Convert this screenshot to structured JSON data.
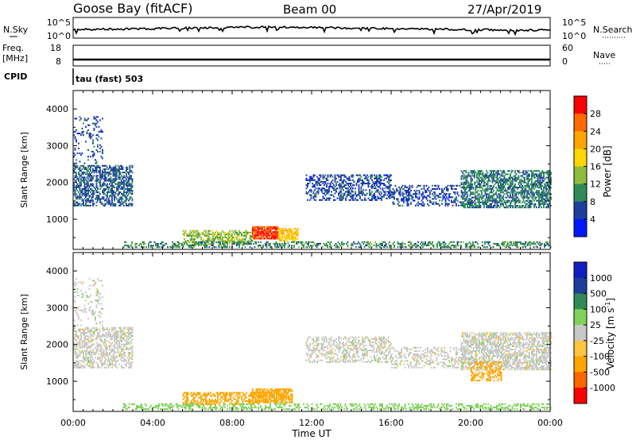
{
  "header": {
    "station": "Goose Bay (fitACF)",
    "beam": "Beam 00",
    "date": "27/Apr/2019"
  },
  "params": {
    "nsky_label": "N.Sky",
    "nsky_ticks": [
      "10^5",
      "10^0"
    ],
    "nsearch_label": "N.Search",
    "nsearch_ticks": [
      "10^5",
      "10^0"
    ],
    "freq_label": "Freq.",
    "freq_unit": "[MHz]",
    "freq_ticks": [
      "18",
      "8"
    ],
    "nave_label": "Nave",
    "nave_ticks": [
      "60",
      "0"
    ],
    "cpid_label": "CPID",
    "cpid_value": "tau (fast) 503"
  },
  "colors": {
    "power": [
      "#0018ff",
      "#1f3f9f",
      "#2e8b57",
      "#8fbc3f",
      "#ffd700",
      "#ffa500",
      "#ff6a00",
      "#ff0000"
    ],
    "velocity": [
      "#ff0000",
      "#ff6600",
      "#ffa500",
      "#ffc440",
      "#c8c8c8",
      "#7fd35a",
      "#2e8b57",
      "#1f3f9f",
      "#1020c0"
    ]
  },
  "chart_data": [
    {
      "type": "heatmap",
      "title": "",
      "xlabel": "Time UT",
      "ylabel": "Slant Range [km]",
      "x_ticks": [
        "00:00",
        "04:00",
        "08:00",
        "12:00",
        "16:00",
        "20:00",
        "00:00"
      ],
      "x_range_hours": [
        0,
        24
      ],
      "y_ticks": [
        "1000",
        "2000",
        "3000",
        "4000"
      ],
      "ylim": [
        180,
        4500
      ],
      "colorbar": {
        "label": "Power [dB]",
        "ticks": [
          "4",
          "8",
          "12",
          "16",
          "20",
          "24",
          "28"
        ],
        "range": [
          0,
          30
        ]
      },
      "bands": [
        {
          "t0": 0.0,
          "t1": 3.0,
          "r0": 1350,
          "r1": 2450,
          "value": 7,
          "density": 0.55
        },
        {
          "t0": 0.0,
          "t1": 1.5,
          "r0": 2500,
          "r1": 3800,
          "value": 6,
          "density": 0.18
        },
        {
          "t0": 11.7,
          "t1": 16.0,
          "r0": 1500,
          "r1": 2200,
          "value": 6,
          "density": 0.45
        },
        {
          "t0": 16.0,
          "t1": 20.0,
          "r0": 1350,
          "r1": 1900,
          "value": 6,
          "density": 0.35
        },
        {
          "t0": 19.5,
          "t1": 24.0,
          "r0": 1300,
          "r1": 2300,
          "value": 9,
          "density": 0.6
        },
        {
          "t0": 5.5,
          "t1": 9.0,
          "r0": 300,
          "r1": 700,
          "value": 14,
          "density": 0.55
        },
        {
          "t0": 9.0,
          "t1": 10.3,
          "r0": 450,
          "r1": 800,
          "value": 28,
          "density": 0.85
        },
        {
          "t0": 10.3,
          "t1": 11.3,
          "r0": 400,
          "r1": 750,
          "value": 20,
          "density": 0.7
        },
        {
          "t0": 2.5,
          "t1": 24.0,
          "r0": 220,
          "r1": 360,
          "value": 10,
          "density": 0.45
        }
      ]
    },
    {
      "type": "heatmap",
      "title": "",
      "xlabel": "Time UT",
      "ylabel": "Slant Range [km]",
      "x_ticks": [
        "00:00",
        "04:00",
        "08:00",
        "12:00",
        "16:00",
        "20:00",
        "00:00"
      ],
      "x_range_hours": [
        0,
        24
      ],
      "y_ticks": [
        "1000",
        "2000",
        "3000",
        "4000"
      ],
      "ylim": [
        180,
        4500
      ],
      "colorbar": {
        "label": "Velocity [m s^-1]",
        "ticks": [
          "1000",
          "500",
          "100",
          "25",
          "-25",
          "-100",
          "-500",
          "-1000"
        ]
      },
      "bands": [
        {
          "t0": 0.0,
          "t1": 3.0,
          "r0": 1350,
          "r1": 2450,
          "value": 0,
          "density": 0.5
        },
        {
          "t0": 0.0,
          "t1": 1.5,
          "r0": 2500,
          "r1": 3800,
          "value": 0,
          "density": 0.18
        },
        {
          "t0": 11.7,
          "t1": 16.0,
          "r0": 1500,
          "r1": 2200,
          "value": 0,
          "density": 0.4
        },
        {
          "t0": 16.0,
          "t1": 20.0,
          "r0": 1350,
          "r1": 1900,
          "value": 0,
          "density": 0.3
        },
        {
          "t0": 19.5,
          "t1": 24.0,
          "r0": 1300,
          "r1": 2300,
          "value": 0,
          "density": 0.6
        },
        {
          "t0": 20.0,
          "t1": 21.5,
          "r0": 1000,
          "r1": 1500,
          "value": -300,
          "density": 0.45
        },
        {
          "t0": 5.5,
          "t1": 9.0,
          "r0": 350,
          "r1": 700,
          "value": -150,
          "density": 0.5
        },
        {
          "t0": 9.0,
          "t1": 11.0,
          "r0": 400,
          "r1": 780,
          "value": -200,
          "density": 0.75
        },
        {
          "t0": 2.5,
          "t1": 24.0,
          "r0": 220,
          "r1": 360,
          "value": 60,
          "density": 0.4
        }
      ]
    }
  ]
}
